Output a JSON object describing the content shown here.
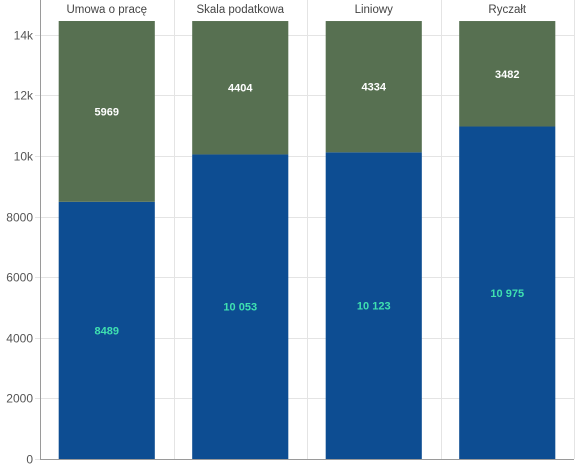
{
  "chart_data": {
    "type": "bar",
    "stacked": true,
    "x_axis_position": "top",
    "categories": [
      "Umowa o pracę",
      "Skala podatkowa",
      "Liniowy",
      "Ryczałt"
    ],
    "series": [
      {
        "values": [
          8489,
          10053,
          10123,
          10975
        ],
        "labels": [
          "8489",
          "10 053",
          "10 123",
          "10 975"
        ],
        "color": "#0d4d92",
        "label_color": "#3fe0b0"
      },
      {
        "values": [
          5969,
          4404,
          4334,
          3482
        ],
        "labels": [
          "5969",
          "4404",
          "4334",
          "3482"
        ],
        "color": "#577051",
        "label_color": "#ffffff"
      }
    ],
    "ylim": [
      0,
      14458
    ],
    "y_ticks": [
      {
        "value": 0,
        "label": "0"
      },
      {
        "value": 2000,
        "label": "2000"
      },
      {
        "value": 4000,
        "label": "4000"
      },
      {
        "value": 6000,
        "label": "6000"
      },
      {
        "value": 8000,
        "label": "8000"
      },
      {
        "value": 10000,
        "label": "10k"
      },
      {
        "value": 12000,
        "label": "12k"
      },
      {
        "value": 14000,
        "label": "14k"
      }
    ],
    "grid": true,
    "colors": {
      "grid": "#e4e4e4",
      "axis": "#9a9a9a"
    }
  }
}
